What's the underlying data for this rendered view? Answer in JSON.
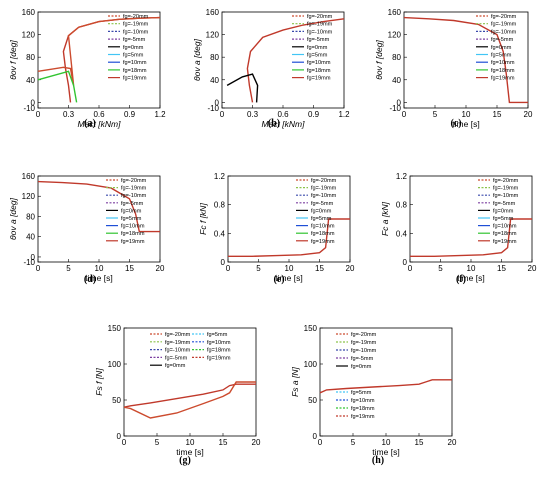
{
  "legend_full": [
    "fg=-20mm",
    "fg=-19mm",
    "fg=-10mm",
    "fg=-5mm",
    "fg=0mm",
    "fg=5mm",
    "fg=10mm",
    "fg=18mm",
    "fg=19mm"
  ],
  "legend_h_top": [
    "fg=-20mm",
    "fg=-19mm",
    "fg=-10mm",
    "fg=-5mm",
    "fg=0mm"
  ],
  "legend_h_bottom": [
    "fg=5mm",
    "fg=10mm",
    "fg=18mm",
    "fg=19mm"
  ],
  "series_colors": {
    "fg=-20mm": "#cc4b2e",
    "fg=-19mm": "#8bc34a",
    "fg=-10mm": "#3949ab",
    "fg=-5mm": "#7b3fa0",
    "fg=0mm": "#000000",
    "fg=5mm": "#42c5f5",
    "fg=10mm": "#1f4fd6",
    "fg=18mm": "#31c431",
    "fg=19mm": "#c0392b"
  },
  "chart_data": [
    {
      "id": "a",
      "tag": "(a)",
      "type": "line",
      "xlabel": "Mact [kNm]",
      "ylabel": "θov f [deg]",
      "xlim": [
        0,
        1.2
      ],
      "ylim": [
        -10,
        160
      ],
      "xticks": [
        "0",
        "0.3",
        "0.6",
        "0.9",
        "1.2"
      ],
      "yticks": [
        "-10",
        "0",
        "40",
        "80",
        "120",
        "160"
      ],
      "series": [
        {
          "name": "fg=19mm",
          "x": [
            0.32,
            0.3,
            0.27,
            0.25,
            0.3,
            0.4,
            0.6,
            0.8,
            1.0,
            1.2
          ],
          "y": [
            0,
            30,
            60,
            90,
            118,
            133,
            143,
            147,
            149,
            150
          ]
        },
        {
          "name": "fg=-20mm",
          "x": [
            0,
            0.25,
            0.32,
            0.35,
            0.3,
            0.4,
            0.6,
            0.8,
            1.0,
            1.2
          ],
          "y": [
            55,
            62,
            60,
            30,
            118,
            133,
            143,
            147,
            149,
            150
          ]
        },
        {
          "name": "fg=18mm",
          "x": [
            0,
            0.3,
            0.35,
            0.38
          ],
          "y": [
            40,
            55,
            30,
            0
          ]
        }
      ]
    },
    {
      "id": "b",
      "tag": "(b)",
      "type": "line",
      "xlabel": "Mact [kNm]",
      "ylabel": "θov a [deg]",
      "xlim": [
        0,
        1.2
      ],
      "ylim": [
        -10,
        160
      ],
      "xticks": [
        "0",
        "0.3",
        "0.6",
        "0.9",
        "1.2"
      ],
      "yticks": [
        "-10",
        "0",
        "40",
        "80",
        "120",
        "160"
      ],
      "series": [
        {
          "name": "fg=19mm",
          "x": [
            0.3,
            0.27,
            0.25,
            0.28,
            0.4,
            0.6,
            0.8,
            1.0,
            1.2
          ],
          "y": [
            0,
            30,
            60,
            90,
            115,
            128,
            137,
            143,
            148
          ]
        },
        {
          "name": "fg=0mm",
          "x": [
            0.05,
            0.2,
            0.3,
            0.35,
            0.34
          ],
          "y": [
            30,
            45,
            50,
            30,
            0
          ]
        }
      ]
    },
    {
      "id": "c",
      "tag": "(c)",
      "type": "line",
      "xlabel": "time [s]",
      "ylabel": "θov f [deg]",
      "xlim": [
        0,
        20
      ],
      "ylim": [
        -10,
        160
      ],
      "xticks": [
        "0",
        "5",
        "10",
        "15",
        "20"
      ],
      "yticks": [
        "-10",
        "0",
        "40",
        "80",
        "120",
        "160"
      ],
      "series": [
        {
          "name": "fg=19mm",
          "x": [
            0,
            4,
            8,
            12,
            15,
            16,
            16.5,
            17,
            20
          ],
          "y": [
            150,
            148,
            145,
            138,
            120,
            90,
            50,
            0,
            0
          ]
        }
      ]
    },
    {
      "id": "d",
      "tag": "(d)",
      "type": "line",
      "xlabel": "time [s]",
      "ylabel": "θov a [deg]",
      "xlim": [
        0,
        20
      ],
      "ylim": [
        -10,
        160
      ],
      "xticks": [
        "0",
        "5",
        "10",
        "15",
        "20"
      ],
      "yticks": [
        "-10",
        "0",
        "40",
        "80",
        "120",
        "160"
      ],
      "series": [
        {
          "name": "fg=19mm",
          "x": [
            0,
            4,
            8,
            12,
            15,
            16,
            16.6,
            17,
            20
          ],
          "y": [
            149,
            147,
            144,
            136,
            115,
            85,
            50,
            50,
            50
          ]
        }
      ]
    },
    {
      "id": "e",
      "tag": "(e)",
      "type": "line",
      "xlabel": "time [s]",
      "ylabel": "Fc f [kN]",
      "xlim": [
        0,
        20
      ],
      "ylim": [
        0,
        1.2
      ],
      "xticks": [
        "0",
        "5",
        "10",
        "15",
        "20"
      ],
      "yticks": [
        "0",
        "0.4",
        "0.8",
        "1.2"
      ],
      "series": [
        {
          "name": "fg=19mm",
          "x": [
            0,
            4,
            8,
            12,
            15,
            16,
            16.5,
            17,
            20
          ],
          "y": [
            0.08,
            0.08,
            0.09,
            0.1,
            0.13,
            0.2,
            0.6,
            0.6,
            0.6
          ]
        }
      ]
    },
    {
      "id": "f",
      "tag": "(f)",
      "type": "line",
      "xlabel": "time [s]",
      "ylabel": "Fc a [kN]",
      "xlim": [
        0,
        20
      ],
      "ylim": [
        0,
        1.2
      ],
      "xticks": [
        "0",
        "5",
        "10",
        "15",
        "20"
      ],
      "yticks": [
        "0",
        "0.4",
        "0.8",
        "1.2"
      ],
      "series": [
        {
          "name": "fg=19mm",
          "x": [
            0,
            4,
            8,
            12,
            15,
            16,
            16.5,
            17,
            20
          ],
          "y": [
            0.08,
            0.08,
            0.09,
            0.1,
            0.13,
            0.2,
            0.6,
            0.6,
            0.6
          ]
        }
      ]
    },
    {
      "id": "g",
      "tag": "(g)",
      "type": "line",
      "xlabel": "time [s]",
      "ylabel": "Fs f [N]",
      "xlim": [
        0,
        20
      ],
      "ylim": [
        0,
        150
      ],
      "xticks": [
        "0",
        "5",
        "10",
        "15",
        "20"
      ],
      "yticks": [
        "0",
        "50",
        "100",
        "150"
      ],
      "series": [
        {
          "name": "fg=19mm",
          "x": [
            0,
            1,
            4,
            8,
            12,
            15,
            16,
            17,
            20
          ],
          "y": [
            40,
            42,
            46,
            52,
            58,
            64,
            70,
            72,
            72
          ]
        },
        {
          "name": "fg=-20mm",
          "x": [
            0,
            1,
            4,
            8,
            12,
            15,
            16,
            17,
            20
          ],
          "y": [
            40,
            38,
            25,
            32,
            45,
            55,
            60,
            75,
            75
          ]
        }
      ]
    },
    {
      "id": "h",
      "tag": "(h)",
      "type": "line",
      "xlabel": "time [s]",
      "ylabel": "Fs a [N]",
      "xlim": [
        0,
        20
      ],
      "ylim": [
        0,
        150
      ],
      "xticks": [
        "0",
        "5",
        "10",
        "15",
        "20"
      ],
      "yticks": [
        "0",
        "50",
        "100",
        "150"
      ],
      "series": [
        {
          "name": "fg=19mm",
          "x": [
            0,
            1,
            4,
            8,
            12,
            15,
            16,
            17,
            20
          ],
          "y": [
            60,
            64,
            66,
            68,
            70,
            72,
            75,
            78,
            78
          ]
        }
      ]
    }
  ]
}
